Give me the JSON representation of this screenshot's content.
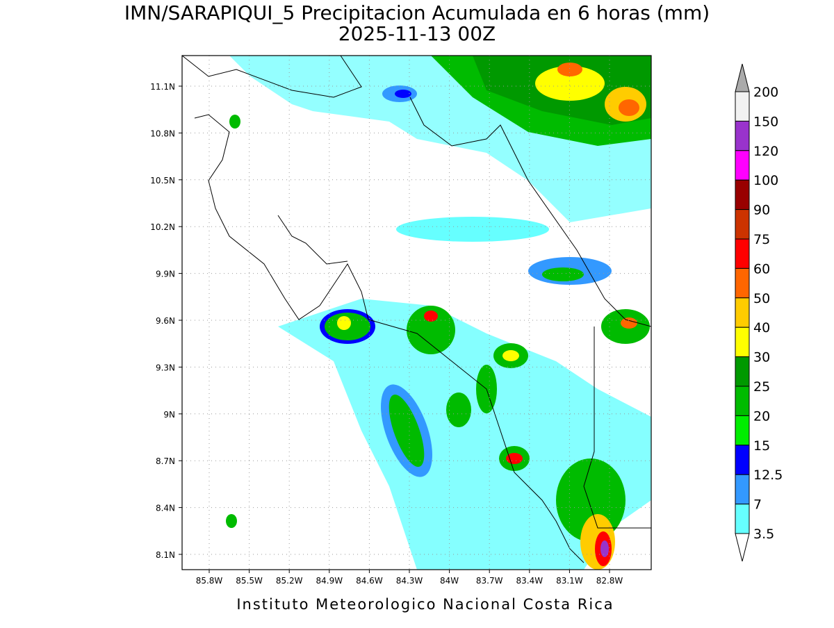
{
  "title": "IMN/SARAPIQUI_5 Precipitacion Acumulada en 6 horas (mm)",
  "subtitle": "2025-11-13 00Z",
  "map": {
    "lat_labels": [
      "11.1N",
      "10.8N",
      "10.5N",
      "10.2N",
      "9.9N",
      "9.6N",
      "9.3N",
      "9N",
      "8.7N",
      "8.4N",
      "8.1N"
    ],
    "lon_labels": [
      "85.8W",
      "85.5W",
      "85.2W",
      "84.9W",
      "84.6W",
      "84.3W",
      "84W",
      "83.7W",
      "83.4W",
      "83.1W",
      "82.8W"
    ]
  },
  "colorbar": {
    "labels": [
      "200",
      "150",
      "120",
      "100",
      "90",
      "75",
      "60",
      "50",
      "40",
      "30",
      "25",
      "20",
      "15",
      "12.5",
      "7",
      "3.5"
    ],
    "colors": [
      "#f2f2f2",
      "#9933cc",
      "#ff00ff",
      "#990000",
      "#cc3300",
      "#ff0000",
      "#ff6600",
      "#ffcc00",
      "#ffff00",
      "#009900",
      "#00bb00",
      "#00ee00",
      "#0000ff",
      "#3399ff",
      "#66ffff"
    ],
    "over_color": "#aaaaaa",
    "under_color": "#ffffff"
  },
  "footer": "Instituto Meteorologico Nacional Costa Rica"
}
